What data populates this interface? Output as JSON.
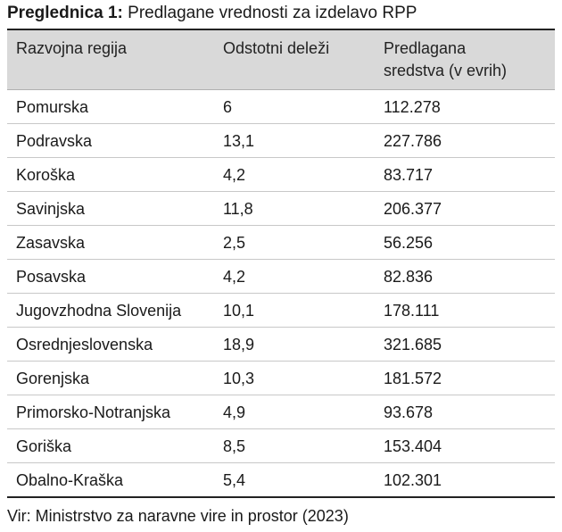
{
  "caption": {
    "label": "Preglednica 1:",
    "text": "Predlagane vrednosti za izdelavo RPP"
  },
  "table": {
    "headers": {
      "region": "Razvojna regija",
      "share": "Odstotni deleži",
      "funds_line1": "Predlagana",
      "funds_line2": "sredstva (v evrih)"
    },
    "rows": [
      {
        "region": "Pomurska",
        "share": "6",
        "funds": "112.278"
      },
      {
        "region": "Podravska",
        "share": "13,1",
        "funds": "227.786"
      },
      {
        "region": "Koroška",
        "share": "4,2",
        "funds": "83.717"
      },
      {
        "region": "Savinjska",
        "share": "11,8",
        "funds": "206.377"
      },
      {
        "region": "Zasavska",
        "share": "2,5",
        "funds": "56.256"
      },
      {
        "region": "Posavska",
        "share": "4,2",
        "funds": "82.836"
      },
      {
        "region": "Jugovzhodna Slovenija",
        "share": "10,1",
        "funds": "178.111"
      },
      {
        "region": "Osrednjeslovenska",
        "share": "18,9",
        "funds": "321.685"
      },
      {
        "region": "Gorenjska",
        "share": "10,3",
        "funds": "181.572"
      },
      {
        "region": "Primorsko-Notranjska",
        "share": "4,9",
        "funds": "93.678"
      },
      {
        "region": "Goriška",
        "share": "8,5",
        "funds": "153.404"
      },
      {
        "region": "Obalno-Kraška",
        "share": "5,4",
        "funds": "102.301"
      }
    ]
  },
  "source": "Vir: Ministrstvo za naravne vire in prostor (2023)"
}
